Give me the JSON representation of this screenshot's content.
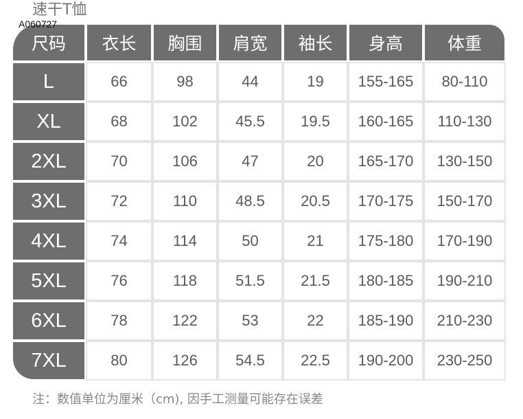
{
  "title": "速干T恤",
  "code": "A060727",
  "colors": {
    "header_bg": "#6e6e6e",
    "header_text": "#ffffff",
    "value_text": "#5a5a5a",
    "grid_line": "#e4e4e4"
  },
  "table": {
    "headers": [
      "尺码",
      "衣长",
      "胸围",
      "肩宽",
      "袖长",
      "身高",
      "体重"
    ],
    "rows": [
      [
        "L",
        "66",
        "98",
        "44",
        "19",
        "155-165",
        "80-110"
      ],
      [
        "XL",
        "68",
        "102",
        "45.5",
        "19.5",
        "160-165",
        "110-130"
      ],
      [
        "2XL",
        "70",
        "106",
        "47",
        "20",
        "165-170",
        "130-150"
      ],
      [
        "3XL",
        "72",
        "110",
        "48.5",
        "20.5",
        "170-175",
        "150-170"
      ],
      [
        "4XL",
        "74",
        "114",
        "50",
        "21",
        "175-180",
        "170-190"
      ],
      [
        "5XL",
        "76",
        "118",
        "51.5",
        "21.5",
        "180-185",
        "190-210"
      ],
      [
        "6XL",
        "78",
        "122",
        "53",
        "22",
        "185-190",
        "210-230"
      ],
      [
        "7XL",
        "80",
        "126",
        "54.5",
        "22.5",
        "190-200",
        "230-250"
      ]
    ]
  },
  "note": "注：数值单位为厘米（cm), 因手工测量可能存在误差"
}
